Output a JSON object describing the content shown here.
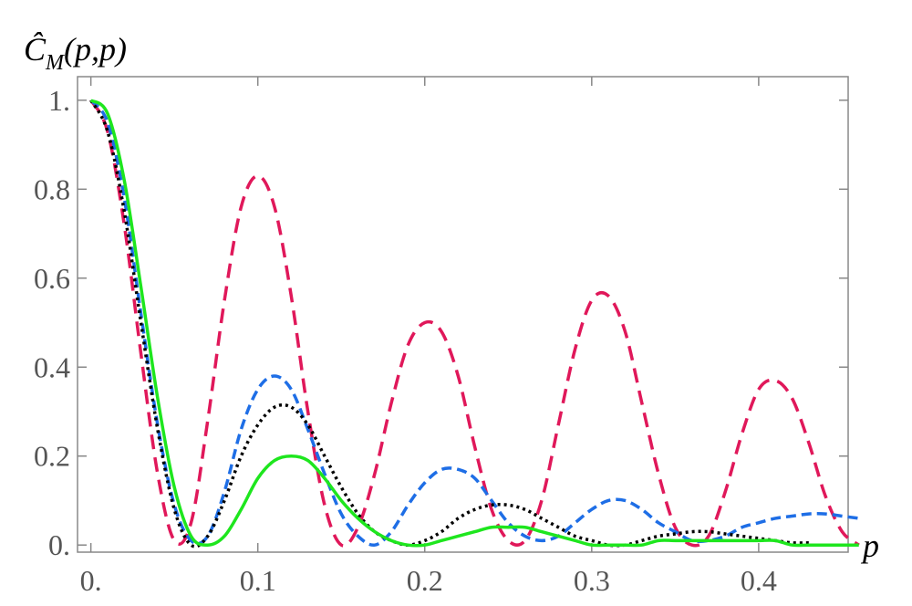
{
  "chart_data": {
    "type": "line",
    "ylabel": {
      "base": "Ĉ",
      "sub": "M",
      "rest": "(p,p)"
    },
    "xlabel": "p",
    "x": [
      0,
      0.01,
      0.02,
      0.03,
      0.04,
      0.05,
      0.06,
      0.07,
      0.08,
      0.09,
      0.1,
      0.11,
      0.12,
      0.13,
      0.14,
      0.15,
      0.16,
      0.17,
      0.18,
      0.19,
      0.2,
      0.21,
      0.22,
      0.23,
      0.24,
      0.25,
      0.26,
      0.27,
      0.28,
      0.29,
      0.3,
      0.31,
      0.32,
      0.33,
      0.34,
      0.35,
      0.36,
      0.37,
      0.38,
      0.39,
      0.4,
      0.41,
      0.42,
      0.43,
      0.44,
      0.45,
      0.46
    ],
    "series": [
      {
        "color": "#e0185a",
        "dash": "16 9",
        "values": [
          1,
          0.93,
          0.72,
          0.43,
          0.16,
          0.01,
          0.05,
          0.28,
          0.55,
          0.76,
          0.83,
          0.76,
          0.56,
          0.3,
          0.09,
          0,
          0.04,
          0.16,
          0.32,
          0.45,
          0.5,
          0.48,
          0.38,
          0.22,
          0.08,
          0.01,
          0.01,
          0.1,
          0.27,
          0.44,
          0.55,
          0.56,
          0.48,
          0.32,
          0.16,
          0.04,
          0,
          0.02,
          0.12,
          0.25,
          0.35,
          0.37,
          0.33,
          0.23,
          0.11,
          0.03,
          0
        ]
      },
      {
        "color": "#1e6ee6",
        "dash": "11 6",
        "values": [
          1,
          0.95,
          0.78,
          0.52,
          0.27,
          0.09,
          0.01,
          0.02,
          0.12,
          0.26,
          0.35,
          0.38,
          0.35,
          0.26,
          0.16,
          0.07,
          0.02,
          0,
          0.03,
          0.09,
          0.14,
          0.17,
          0.17,
          0.15,
          0.1,
          0.05,
          0.02,
          0.01,
          0.02,
          0.05,
          0.08,
          0.1,
          0.1,
          0.08,
          0.05,
          0.03,
          0.01,
          0.01,
          0.02,
          0.04,
          0.05,
          0.06,
          0.065,
          0.07,
          0.07,
          0.065,
          0.06
        ]
      },
      {
        "color": "#000000",
        "dash": "3 4",
        "values": [
          1,
          0.93,
          0.75,
          0.5,
          0.26,
          0.08,
          0,
          0.02,
          0.1,
          0.2,
          0.27,
          0.31,
          0.31,
          0.27,
          0.2,
          0.13,
          0.07,
          0.03,
          0.01,
          0,
          0.01,
          0.03,
          0.06,
          0.08,
          0.09,
          0.09,
          0.08,
          0.06,
          0.04,
          0.02,
          0.01,
          0,
          0,
          0.01,
          0.02,
          0.025,
          0.03,
          0.03,
          0.025,
          0.02,
          0.015,
          0.01,
          0.005,
          0.005,
          null,
          null,
          null
        ]
      },
      {
        "color": "#1ee61e",
        "dash": "none",
        "values": [
          1,
          0.97,
          0.82,
          0.58,
          0.33,
          0.13,
          0.02,
          0,
          0.02,
          0.08,
          0.15,
          0.19,
          0.2,
          0.19,
          0.15,
          0.1,
          0.06,
          0.03,
          0.01,
          0,
          0,
          0.01,
          0.02,
          0.03,
          0.04,
          0.04,
          0.04,
          0.03,
          0.02,
          0.01,
          0,
          0,
          0,
          0,
          0.01,
          0.01,
          0.01,
          0.01,
          0.01,
          0.01,
          0.01,
          0.01,
          0,
          0,
          0,
          0,
          0
        ]
      }
    ],
    "xlim": [
      -0.008,
      0.4536
    ],
    "ylim": [
      -0.016,
      1.053
    ],
    "xticks": [
      {
        "value": 0,
        "label": "0."
      },
      0.1,
      0.2,
      0.3,
      0.4
    ],
    "yticks": [
      {
        "value": 0,
        "label": "0."
      },
      0.2,
      0.4,
      0.6,
      0.8,
      {
        "value": 1,
        "label": "1."
      }
    ]
  }
}
